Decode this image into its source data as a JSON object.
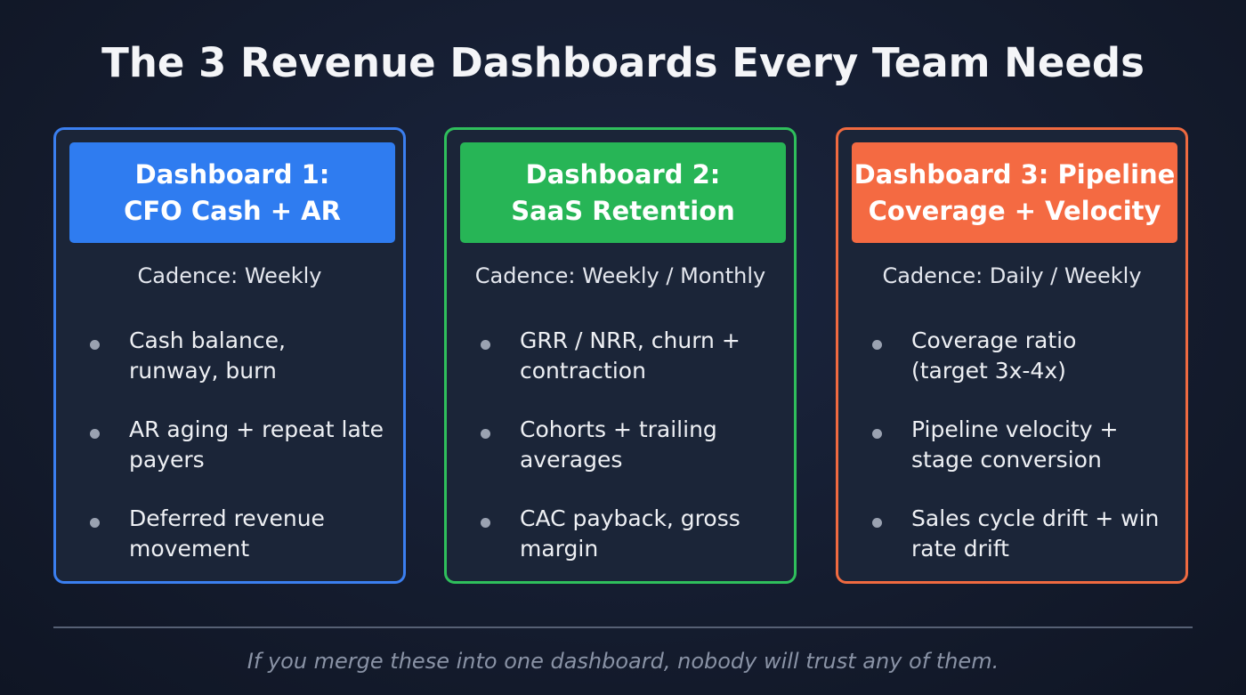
{
  "title": "The 3 Revenue Dashboards Every Team Needs",
  "cards": [
    {
      "header": [
        "Dashboard 1:",
        "CFO Cash + AR"
      ],
      "cadence": "Cadence: Weekly",
      "bullets": [
        [
          "Cash balance,",
          "runway, burn"
        ],
        [
          "AR aging + repeat late",
          "payers"
        ],
        [
          "Deferred revenue",
          "movement"
        ]
      ]
    },
    {
      "header": [
        "Dashboard 2:",
        "SaaS Retention"
      ],
      "cadence": "Cadence: Weekly / Monthly",
      "bullets": [
        [
          "GRR / NRR, churn +",
          "contraction"
        ],
        [
          "Cohorts + trailing",
          "averages"
        ],
        [
          "CAC payback, gross",
          "margin"
        ]
      ]
    },
    {
      "header": [
        "Dashboard 3: Pipeline",
        "Coverage + Velocity"
      ],
      "cadence": "Cadence: Daily / Weekly",
      "bullets": [
        [
          "Coverage ratio",
          "(target 3x-4x)"
        ],
        [
          "Pipeline velocity +",
          "stage conversion"
        ],
        [
          "Sales cycle drift + win",
          "rate drift"
        ]
      ]
    }
  ],
  "footer": "If you merge these into one dashboard, nobody will trust any of them."
}
